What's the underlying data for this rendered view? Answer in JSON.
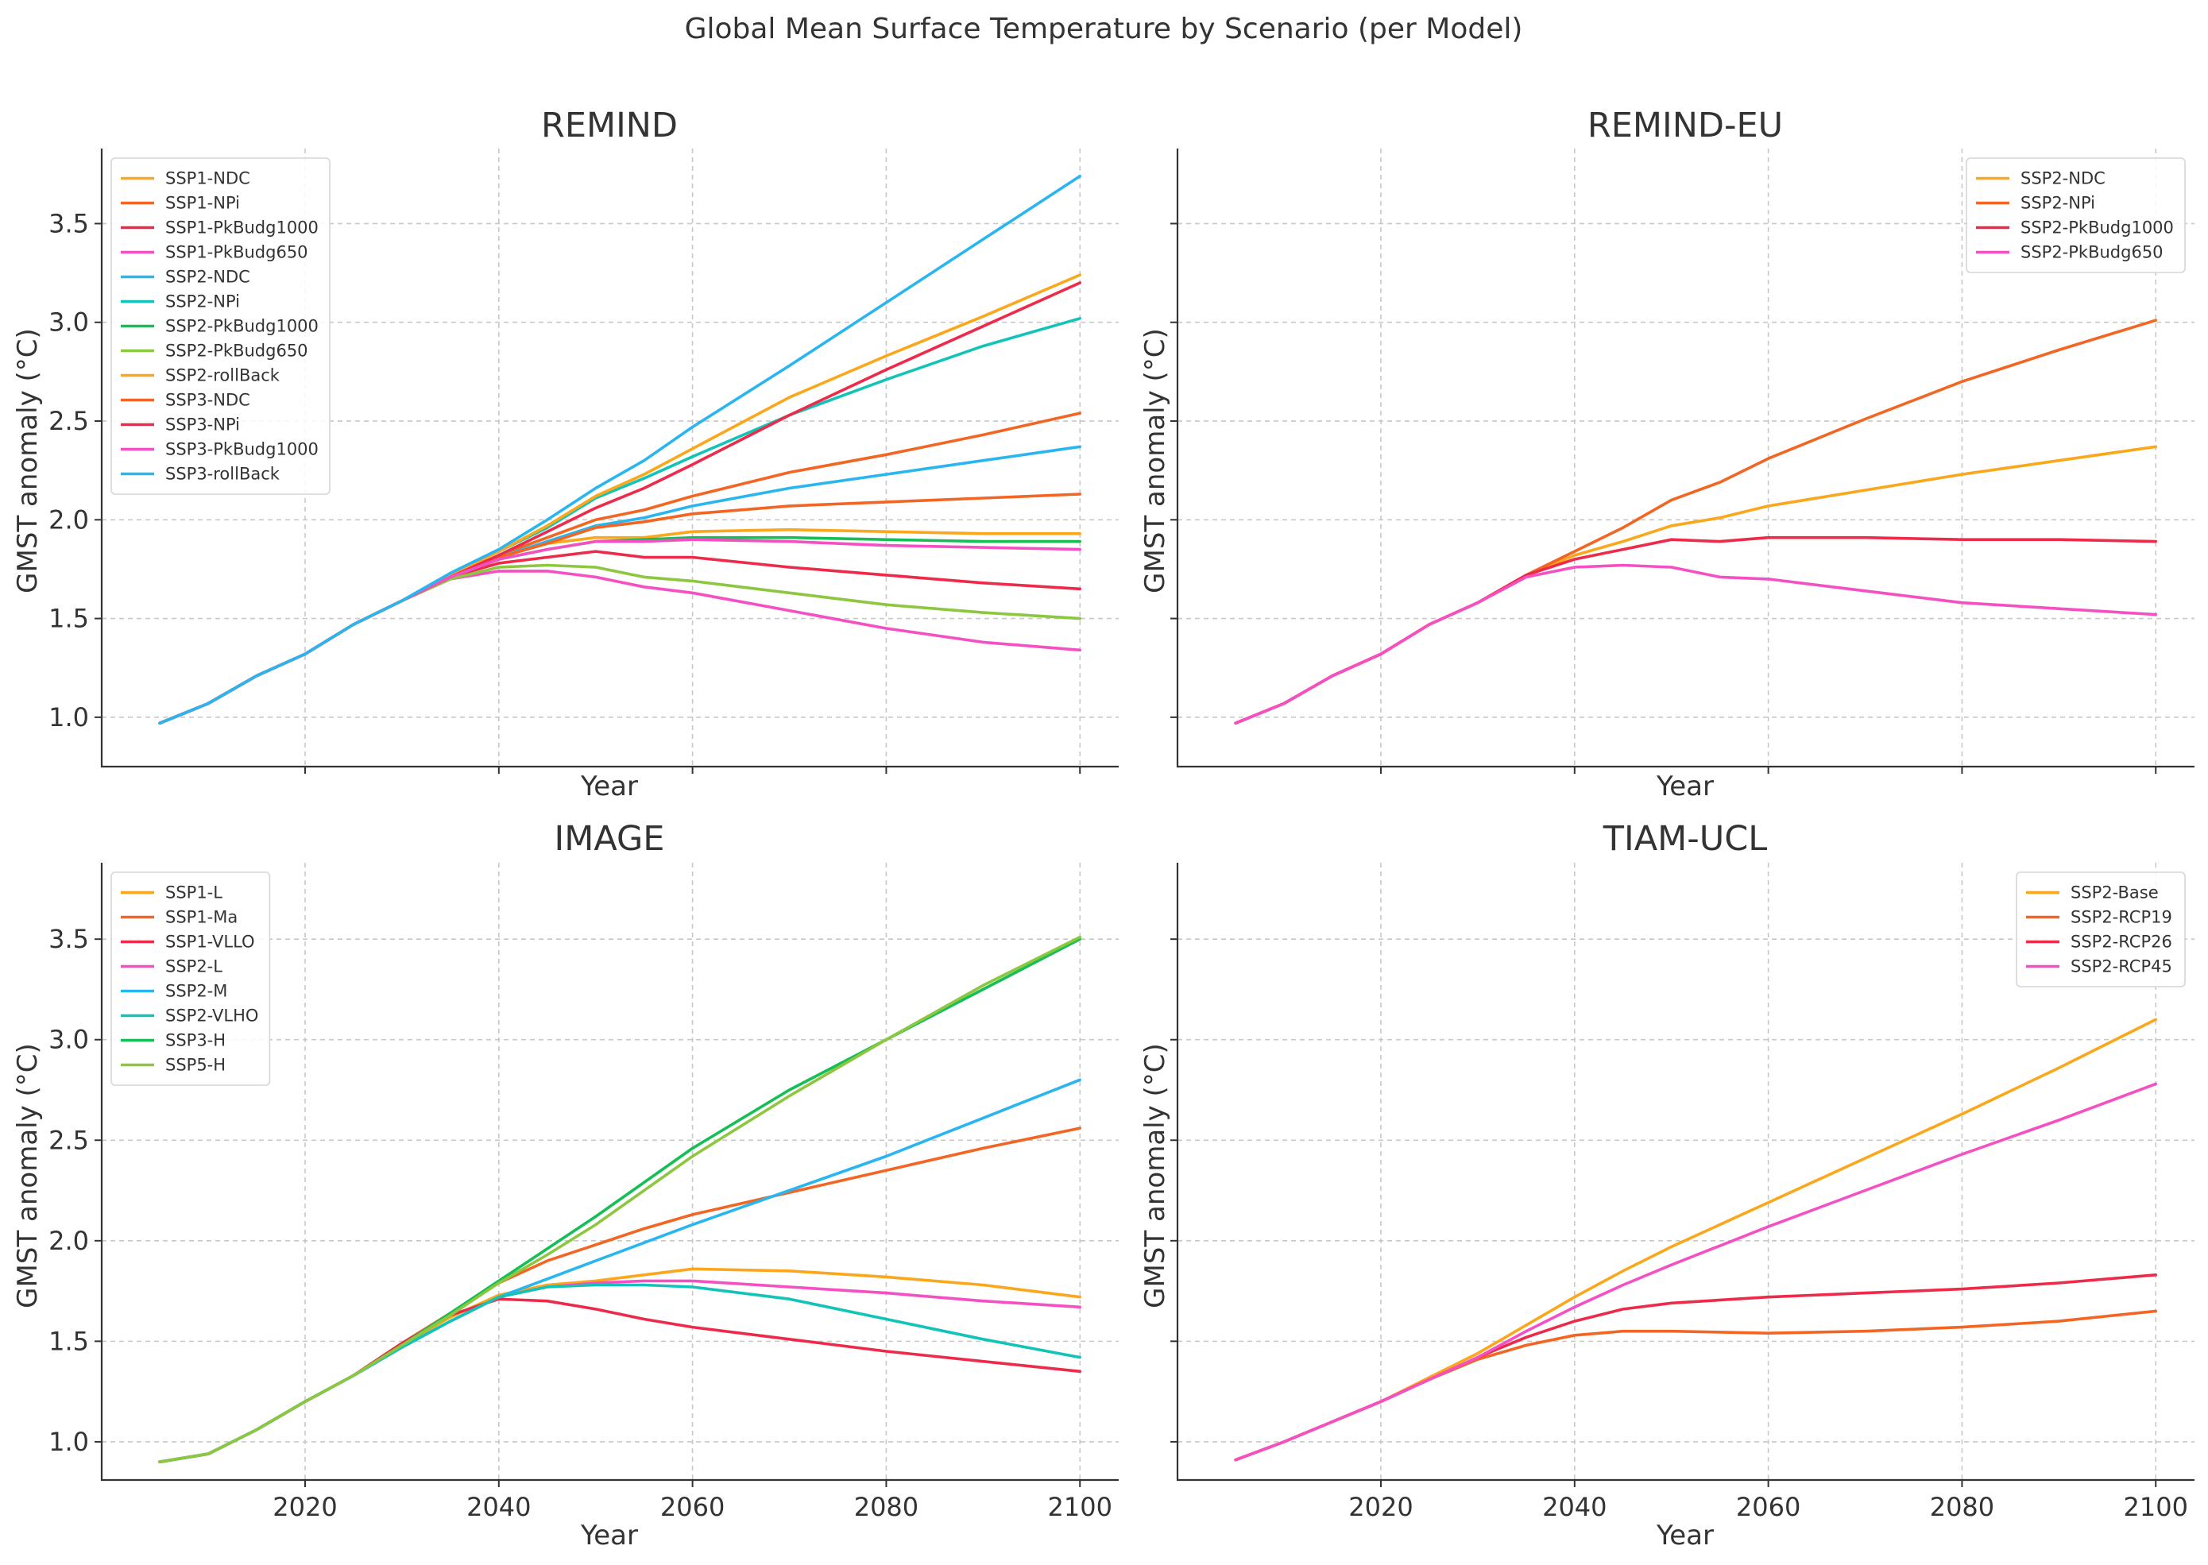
{
  "suptitle": "Global Mean Surface Temperature by Scenario (per Model)",
  "colors": [
    "#FBA71B",
    "#F26522",
    "#EE2A4A",
    "#F54FC4",
    "#29B6F0",
    "#12C4B8",
    "#16BF56",
    "#8DC63F"
  ],
  "chart_data": [
    {
      "type": "line",
      "title": "REMIND",
      "xlabel": "Year",
      "ylabel": "GMST anomaly (°C)",
      "xlim": [
        1999,
        2104
      ],
      "ylim": [
        0.75,
        3.88
      ],
      "xticks": [
        2020,
        2040,
        2060,
        2080,
        2100
      ],
      "xtick_labels_shown": false,
      "yticks": [
        1.0,
        1.5,
        2.0,
        2.5,
        3.0,
        3.5
      ],
      "ytick_labels": [
        "1.0",
        "1.5",
        "2.0",
        "2.5",
        "3.0",
        "3.5"
      ],
      "grid": true,
      "legend_position": "upper-left",
      "x": [
        2005,
        2010,
        2015,
        2020,
        2025,
        2030,
        2035,
        2040,
        2045,
        2050,
        2055,
        2060,
        2070,
        2080,
        2090,
        2100
      ],
      "series": [
        {
          "name": "SSP1-NDC",
          "values": [
            0.97,
            1.07,
            1.21,
            1.32,
            1.47,
            1.59,
            1.71,
            1.81,
            1.88,
            1.91,
            1.91,
            1.94,
            1.95,
            1.94,
            1.93,
            1.93
          ]
        },
        {
          "name": "SSP1-NPi",
          "values": [
            0.97,
            1.07,
            1.21,
            1.32,
            1.47,
            1.59,
            1.71,
            1.82,
            1.91,
            2.0,
            2.05,
            2.12,
            2.24,
            2.33,
            2.43,
            2.54
          ]
        },
        {
          "name": "SSP1-PkBudg1000",
          "values": [
            0.97,
            1.07,
            1.21,
            1.32,
            1.47,
            1.59,
            1.71,
            1.78,
            1.81,
            1.84,
            1.81,
            1.81,
            1.76,
            1.72,
            1.68,
            1.65
          ]
        },
        {
          "name": "SSP1-PkBudg650",
          "values": [
            0.97,
            1.07,
            1.21,
            1.32,
            1.47,
            1.59,
            1.7,
            1.74,
            1.74,
            1.71,
            1.66,
            1.63,
            1.54,
            1.45,
            1.38,
            1.34
          ]
        },
        {
          "name": "SSP2-NDC",
          "values": [
            0.97,
            1.07,
            1.21,
            1.32,
            1.47,
            1.59,
            1.71,
            1.81,
            1.89,
            1.97,
            2.01,
            2.07,
            2.16,
            2.23,
            2.3,
            2.37
          ]
        },
        {
          "name": "SSP2-NPi",
          "values": [
            0.97,
            1.07,
            1.21,
            1.32,
            1.47,
            1.59,
            1.72,
            1.84,
            1.96,
            2.11,
            2.21,
            2.32,
            2.53,
            2.71,
            2.88,
            3.02
          ]
        },
        {
          "name": "SSP2-PkBudg1000",
          "values": [
            0.97,
            1.07,
            1.21,
            1.32,
            1.47,
            1.59,
            1.71,
            1.8,
            1.85,
            1.89,
            1.9,
            1.91,
            1.91,
            1.9,
            1.89,
            1.89
          ]
        },
        {
          "name": "SSP2-PkBudg650",
          "values": [
            0.97,
            1.07,
            1.21,
            1.32,
            1.47,
            1.59,
            1.7,
            1.76,
            1.77,
            1.76,
            1.71,
            1.69,
            1.63,
            1.57,
            1.53,
            1.5
          ]
        },
        {
          "name": "SSP2-rollBack",
          "values": [
            0.97,
            1.07,
            1.21,
            1.32,
            1.47,
            1.59,
            1.72,
            1.84,
            1.97,
            2.12,
            2.23,
            2.36,
            2.62,
            2.83,
            3.03,
            3.24
          ]
        },
        {
          "name": "SSP3-NDC",
          "values": [
            0.97,
            1.07,
            1.21,
            1.32,
            1.47,
            1.59,
            1.71,
            1.81,
            1.88,
            1.96,
            1.99,
            2.03,
            2.07,
            2.09,
            2.11,
            2.13
          ]
        },
        {
          "name": "SSP3-NPi",
          "values": [
            0.97,
            1.07,
            1.21,
            1.32,
            1.47,
            1.59,
            1.71,
            1.82,
            1.94,
            2.06,
            2.16,
            2.28,
            2.53,
            2.76,
            2.98,
            3.2
          ]
        },
        {
          "name": "SSP3-PkBudg1000",
          "values": [
            0.97,
            1.07,
            1.21,
            1.32,
            1.47,
            1.59,
            1.71,
            1.8,
            1.85,
            1.89,
            1.89,
            1.9,
            1.89,
            1.87,
            1.86,
            1.85
          ]
        },
        {
          "name": "SSP3-rollBack",
          "values": [
            0.97,
            1.07,
            1.21,
            1.32,
            1.47,
            1.59,
            1.73,
            1.85,
            2.0,
            2.16,
            2.3,
            2.47,
            2.78,
            3.1,
            3.42,
            3.74
          ]
        }
      ]
    },
    {
      "type": "line",
      "title": "REMIND-EU",
      "xlabel": "Year",
      "ylabel": "GMST anomaly (°C)",
      "xlim": [
        1999,
        2104
      ],
      "ylim": [
        0.75,
        3.88
      ],
      "xticks": [
        2020,
        2040,
        2060,
        2080,
        2100
      ],
      "xtick_labels_shown": false,
      "yticks": [
        1.0,
        1.5,
        2.0,
        2.5,
        3.0,
        3.5
      ],
      "ytick_labels_shown": false,
      "grid": true,
      "legend_position": "upper-right",
      "x": [
        2005,
        2010,
        2015,
        2020,
        2025,
        2030,
        2035,
        2040,
        2045,
        2050,
        2055,
        2060,
        2070,
        2080,
        2090,
        2100
      ],
      "series": [
        {
          "name": "SSP2-NDC",
          "values": [
            0.97,
            1.07,
            1.21,
            1.32,
            1.47,
            1.58,
            1.72,
            1.82,
            1.89,
            1.97,
            2.01,
            2.07,
            2.15,
            2.23,
            2.3,
            2.37
          ]
        },
        {
          "name": "SSP2-NPi",
          "values": [
            0.97,
            1.07,
            1.21,
            1.32,
            1.47,
            1.58,
            1.72,
            1.84,
            1.96,
            2.1,
            2.19,
            2.31,
            2.51,
            2.7,
            2.86,
            3.01
          ]
        },
        {
          "name": "SSP2-PkBudg1000",
          "values": [
            0.97,
            1.07,
            1.21,
            1.32,
            1.47,
            1.58,
            1.72,
            1.8,
            1.85,
            1.9,
            1.89,
            1.91,
            1.91,
            1.9,
            1.9,
            1.89
          ]
        },
        {
          "name": "SSP2-PkBudg650",
          "values": [
            0.97,
            1.07,
            1.21,
            1.32,
            1.47,
            1.58,
            1.71,
            1.76,
            1.77,
            1.76,
            1.71,
            1.7,
            1.64,
            1.58,
            1.55,
            1.52
          ]
        }
      ]
    },
    {
      "type": "line",
      "title": "IMAGE",
      "xlabel": "Year",
      "ylabel": "GMST anomaly (°C)",
      "xlim": [
        1999,
        2104
      ],
      "ylim": [
        0.81,
        3.88
      ],
      "xticks": [
        2020,
        2040,
        2060,
        2080,
        2100
      ],
      "xtick_labels": [
        "2020",
        "2040",
        "2060",
        "2080",
        "2100"
      ],
      "yticks": [
        1.0,
        1.5,
        2.0,
        2.5,
        3.0,
        3.5
      ],
      "ytick_labels": [
        "1.0",
        "1.5",
        "2.0",
        "2.5",
        "3.0",
        "3.5"
      ],
      "grid": true,
      "legend_position": "upper-left",
      "x": [
        2005,
        2010,
        2015,
        2020,
        2025,
        2030,
        2035,
        2040,
        2045,
        2050,
        2055,
        2060,
        2070,
        2080,
        2090,
        2100
      ],
      "series": [
        {
          "name": "SSP1-L",
          "values": [
            0.9,
            0.94,
            1.06,
            1.2,
            1.33,
            1.48,
            1.62,
            1.73,
            1.78,
            1.8,
            1.83,
            1.86,
            1.85,
            1.82,
            1.78,
            1.72
          ]
        },
        {
          "name": "SSP1-Ma",
          "values": [
            0.9,
            0.94,
            1.06,
            1.2,
            1.33,
            1.49,
            1.64,
            1.79,
            1.9,
            1.98,
            2.06,
            2.13,
            2.24,
            2.35,
            2.46,
            2.56
          ]
        },
        {
          "name": "SSP1-VLLO",
          "values": [
            0.9,
            0.94,
            1.06,
            1.2,
            1.33,
            1.49,
            1.63,
            1.71,
            1.7,
            1.66,
            1.61,
            1.57,
            1.51,
            1.45,
            1.4,
            1.35
          ]
        },
        {
          "name": "SSP2-L",
          "values": [
            0.9,
            0.94,
            1.06,
            1.2,
            1.33,
            1.47,
            1.6,
            1.72,
            1.77,
            1.79,
            1.8,
            1.8,
            1.77,
            1.74,
            1.7,
            1.67
          ]
        },
        {
          "name": "SSP2-M",
          "values": [
            0.9,
            0.94,
            1.06,
            1.2,
            1.33,
            1.47,
            1.6,
            1.72,
            1.81,
            1.9,
            1.99,
            2.08,
            2.25,
            2.42,
            2.61,
            2.8
          ]
        },
        {
          "name": "SSP2-VLHO",
          "values": [
            0.9,
            0.94,
            1.06,
            1.2,
            1.33,
            1.47,
            1.6,
            1.72,
            1.77,
            1.78,
            1.78,
            1.77,
            1.71,
            1.61,
            1.51,
            1.42
          ]
        },
        {
          "name": "SSP3-H",
          "values": [
            0.9,
            0.94,
            1.06,
            1.2,
            1.33,
            1.48,
            1.64,
            1.8,
            1.96,
            2.12,
            2.29,
            2.46,
            2.75,
            3.0,
            3.25,
            3.5
          ]
        },
        {
          "name": "SSP5-H",
          "values": [
            0.9,
            0.94,
            1.06,
            1.2,
            1.33,
            1.48,
            1.63,
            1.79,
            1.93,
            2.08,
            2.25,
            2.42,
            2.72,
            3.0,
            3.27,
            3.51
          ]
        }
      ]
    },
    {
      "type": "line",
      "title": "TIAM-UCL",
      "xlabel": "Year",
      "ylabel": "GMST anomaly (°C)",
      "xlim": [
        1999,
        2104
      ],
      "ylim": [
        0.81,
        3.88
      ],
      "xticks": [
        2020,
        2040,
        2060,
        2080,
        2100
      ],
      "xtick_labels": [
        "2020",
        "2040",
        "2060",
        "2080",
        "2100"
      ],
      "yticks": [
        1.0,
        1.5,
        2.0,
        2.5,
        3.0,
        3.5
      ],
      "ytick_labels_shown": false,
      "grid": true,
      "legend_position": "upper-right",
      "x": [
        2005,
        2010,
        2015,
        2020,
        2025,
        2030,
        2035,
        2040,
        2045,
        2050,
        2060,
        2070,
        2080,
        2090,
        2100
      ],
      "series": [
        {
          "name": "SSP2-Base",
          "values": [
            0.91,
            1.0,
            1.1,
            1.2,
            1.32,
            1.44,
            1.58,
            1.72,
            1.85,
            1.97,
            2.19,
            2.41,
            2.63,
            2.86,
            3.1
          ]
        },
        {
          "name": "SSP2-RCP19",
          "values": [
            0.91,
            1.0,
            1.1,
            1.2,
            1.31,
            1.41,
            1.48,
            1.53,
            1.55,
            1.55,
            1.54,
            1.55,
            1.57,
            1.6,
            1.65
          ]
        },
        {
          "name": "SSP2-RCP26",
          "values": [
            0.91,
            1.0,
            1.1,
            1.2,
            1.31,
            1.42,
            1.52,
            1.6,
            1.66,
            1.69,
            1.72,
            1.74,
            1.76,
            1.79,
            1.83
          ]
        },
        {
          "name": "SSP2-RCP45",
          "values": [
            0.91,
            1.0,
            1.1,
            1.2,
            1.31,
            1.42,
            1.55,
            1.67,
            1.78,
            1.88,
            2.07,
            2.25,
            2.43,
            2.6,
            2.78
          ]
        }
      ]
    }
  ]
}
